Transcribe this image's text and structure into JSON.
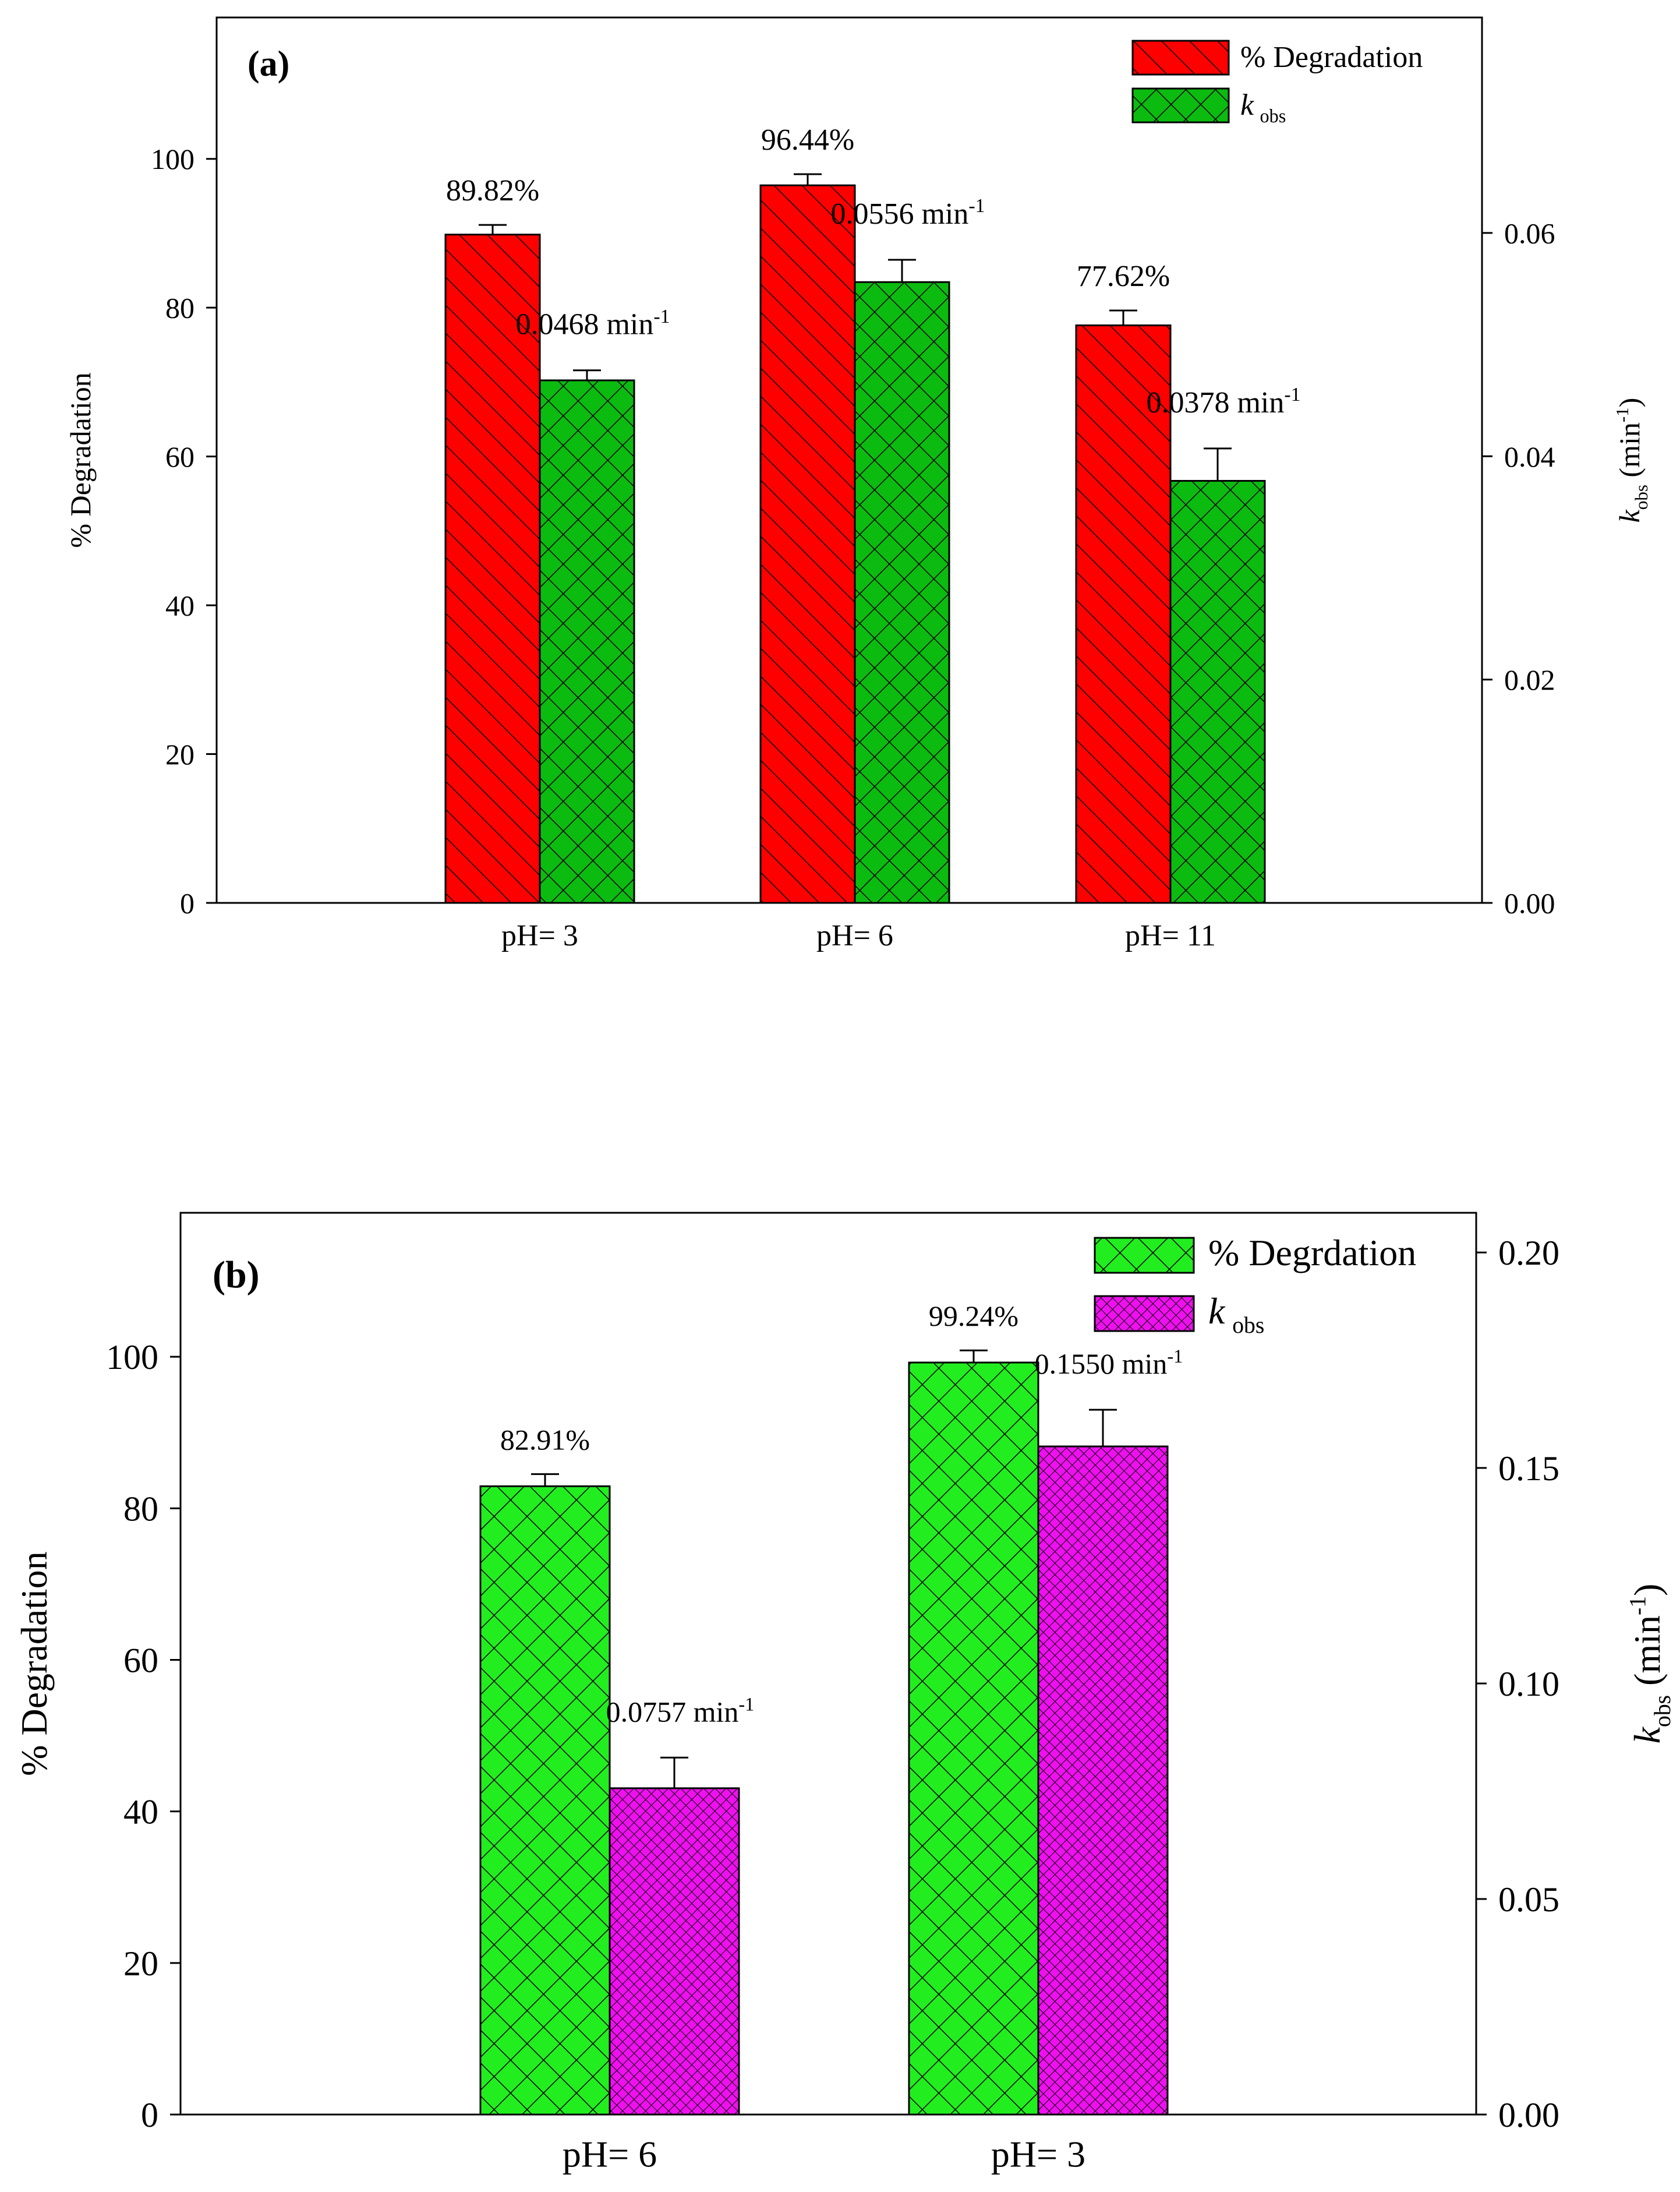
{
  "chart_data": [
    {
      "type": "bar",
      "panel_label": "(a)",
      "categories": [
        "pH= 3",
        "pH= 6",
        "pH= 11"
      ],
      "left_axis": {
        "label": "% Degradation",
        "ylim": [
          0,
          119
        ],
        "ticks": [
          "0",
          "20",
          "40",
          "60",
          "80",
          "100"
        ],
        "tick_values": [
          0,
          20,
          40,
          60,
          80,
          100
        ]
      },
      "right_axis": {
        "label_main": "k",
        "label_sub": "obs",
        "label_unit": "(min",
        "label_sup": "-1",
        "label_close": ")",
        "ylim": [
          0,
          0.0793
        ],
        "ticks": [
          "0.00",
          "0.02",
          "0.04",
          "0.06"
        ],
        "tick_values": [
          0,
          0.02,
          0.04,
          0.06
        ]
      },
      "series": [
        {
          "name": "% Degradation",
          "axis": "left",
          "color": "#ff0000",
          "pattern": "diag",
          "values": [
            89.82,
            96.44,
            77.62
          ],
          "errors": [
            1.3,
            1.5,
            2.0
          ],
          "labels": [
            "89.82%",
            "96.44%",
            "77.62%"
          ]
        },
        {
          "name": "k",
          "name_sub": "obs",
          "axis": "right",
          "color": "#0cbb10",
          "pattern": "cross",
          "values": [
            0.0468,
            0.0556,
            0.0378
          ],
          "errors": [
            0.0009,
            0.002,
            0.0029
          ],
          "labels": [
            "0.0468 min",
            "0.0556 min",
            "0.0378 min"
          ],
          "label_sup": "-1"
        }
      ],
      "legend": {
        "position": "top-right",
        "entries": [
          "% Degradation",
          "k"
        ],
        "entry_sub": "obs"
      }
    },
    {
      "type": "bar",
      "panel_label": "(b)",
      "categories": [
        "pH= 6",
        "pH= 3"
      ],
      "left_axis": {
        "label": "% Degradation",
        "ylim": [
          0,
          119
        ],
        "ticks": [
          "0",
          "20",
          "40",
          "60",
          "80",
          "100"
        ],
        "tick_values": [
          0,
          20,
          40,
          60,
          80,
          100
        ]
      },
      "right_axis": {
        "label_main": "k",
        "label_sub": "obs",
        "label_unit": "(min",
        "label_sup": "-1",
        "label_close": ")",
        "ylim": [
          0,
          0.2092
        ],
        "ticks": [
          "0.00",
          "0.05",
          "0.10",
          "0.15",
          "0.20"
        ],
        "tick_values": [
          0,
          0.05,
          0.1,
          0.15,
          0.2
        ]
      },
      "series": [
        {
          "name": "% Degrdation",
          "axis": "left",
          "color": "#22ee1f",
          "pattern": "cross",
          "values": [
            82.91,
            99.24
          ],
          "errors": [
            1.6,
            1.6
          ],
          "labels": [
            "82.91%",
            "99.24%"
          ]
        },
        {
          "name": "k",
          "name_sub": "obs",
          "axis": "right",
          "color": "#ee10ee",
          "pattern": "diamond",
          "values": [
            0.0757,
            0.155
          ],
          "errors": [
            0.0071,
            0.0085
          ],
          "labels": [
            "0.0757 min",
            "0.1550 min"
          ],
          "label_sup": "-1"
        }
      ],
      "legend": {
        "position": "top-right",
        "entries": [
          "% Degrdation",
          "k"
        ],
        "entry_sub": "obs"
      }
    }
  ]
}
